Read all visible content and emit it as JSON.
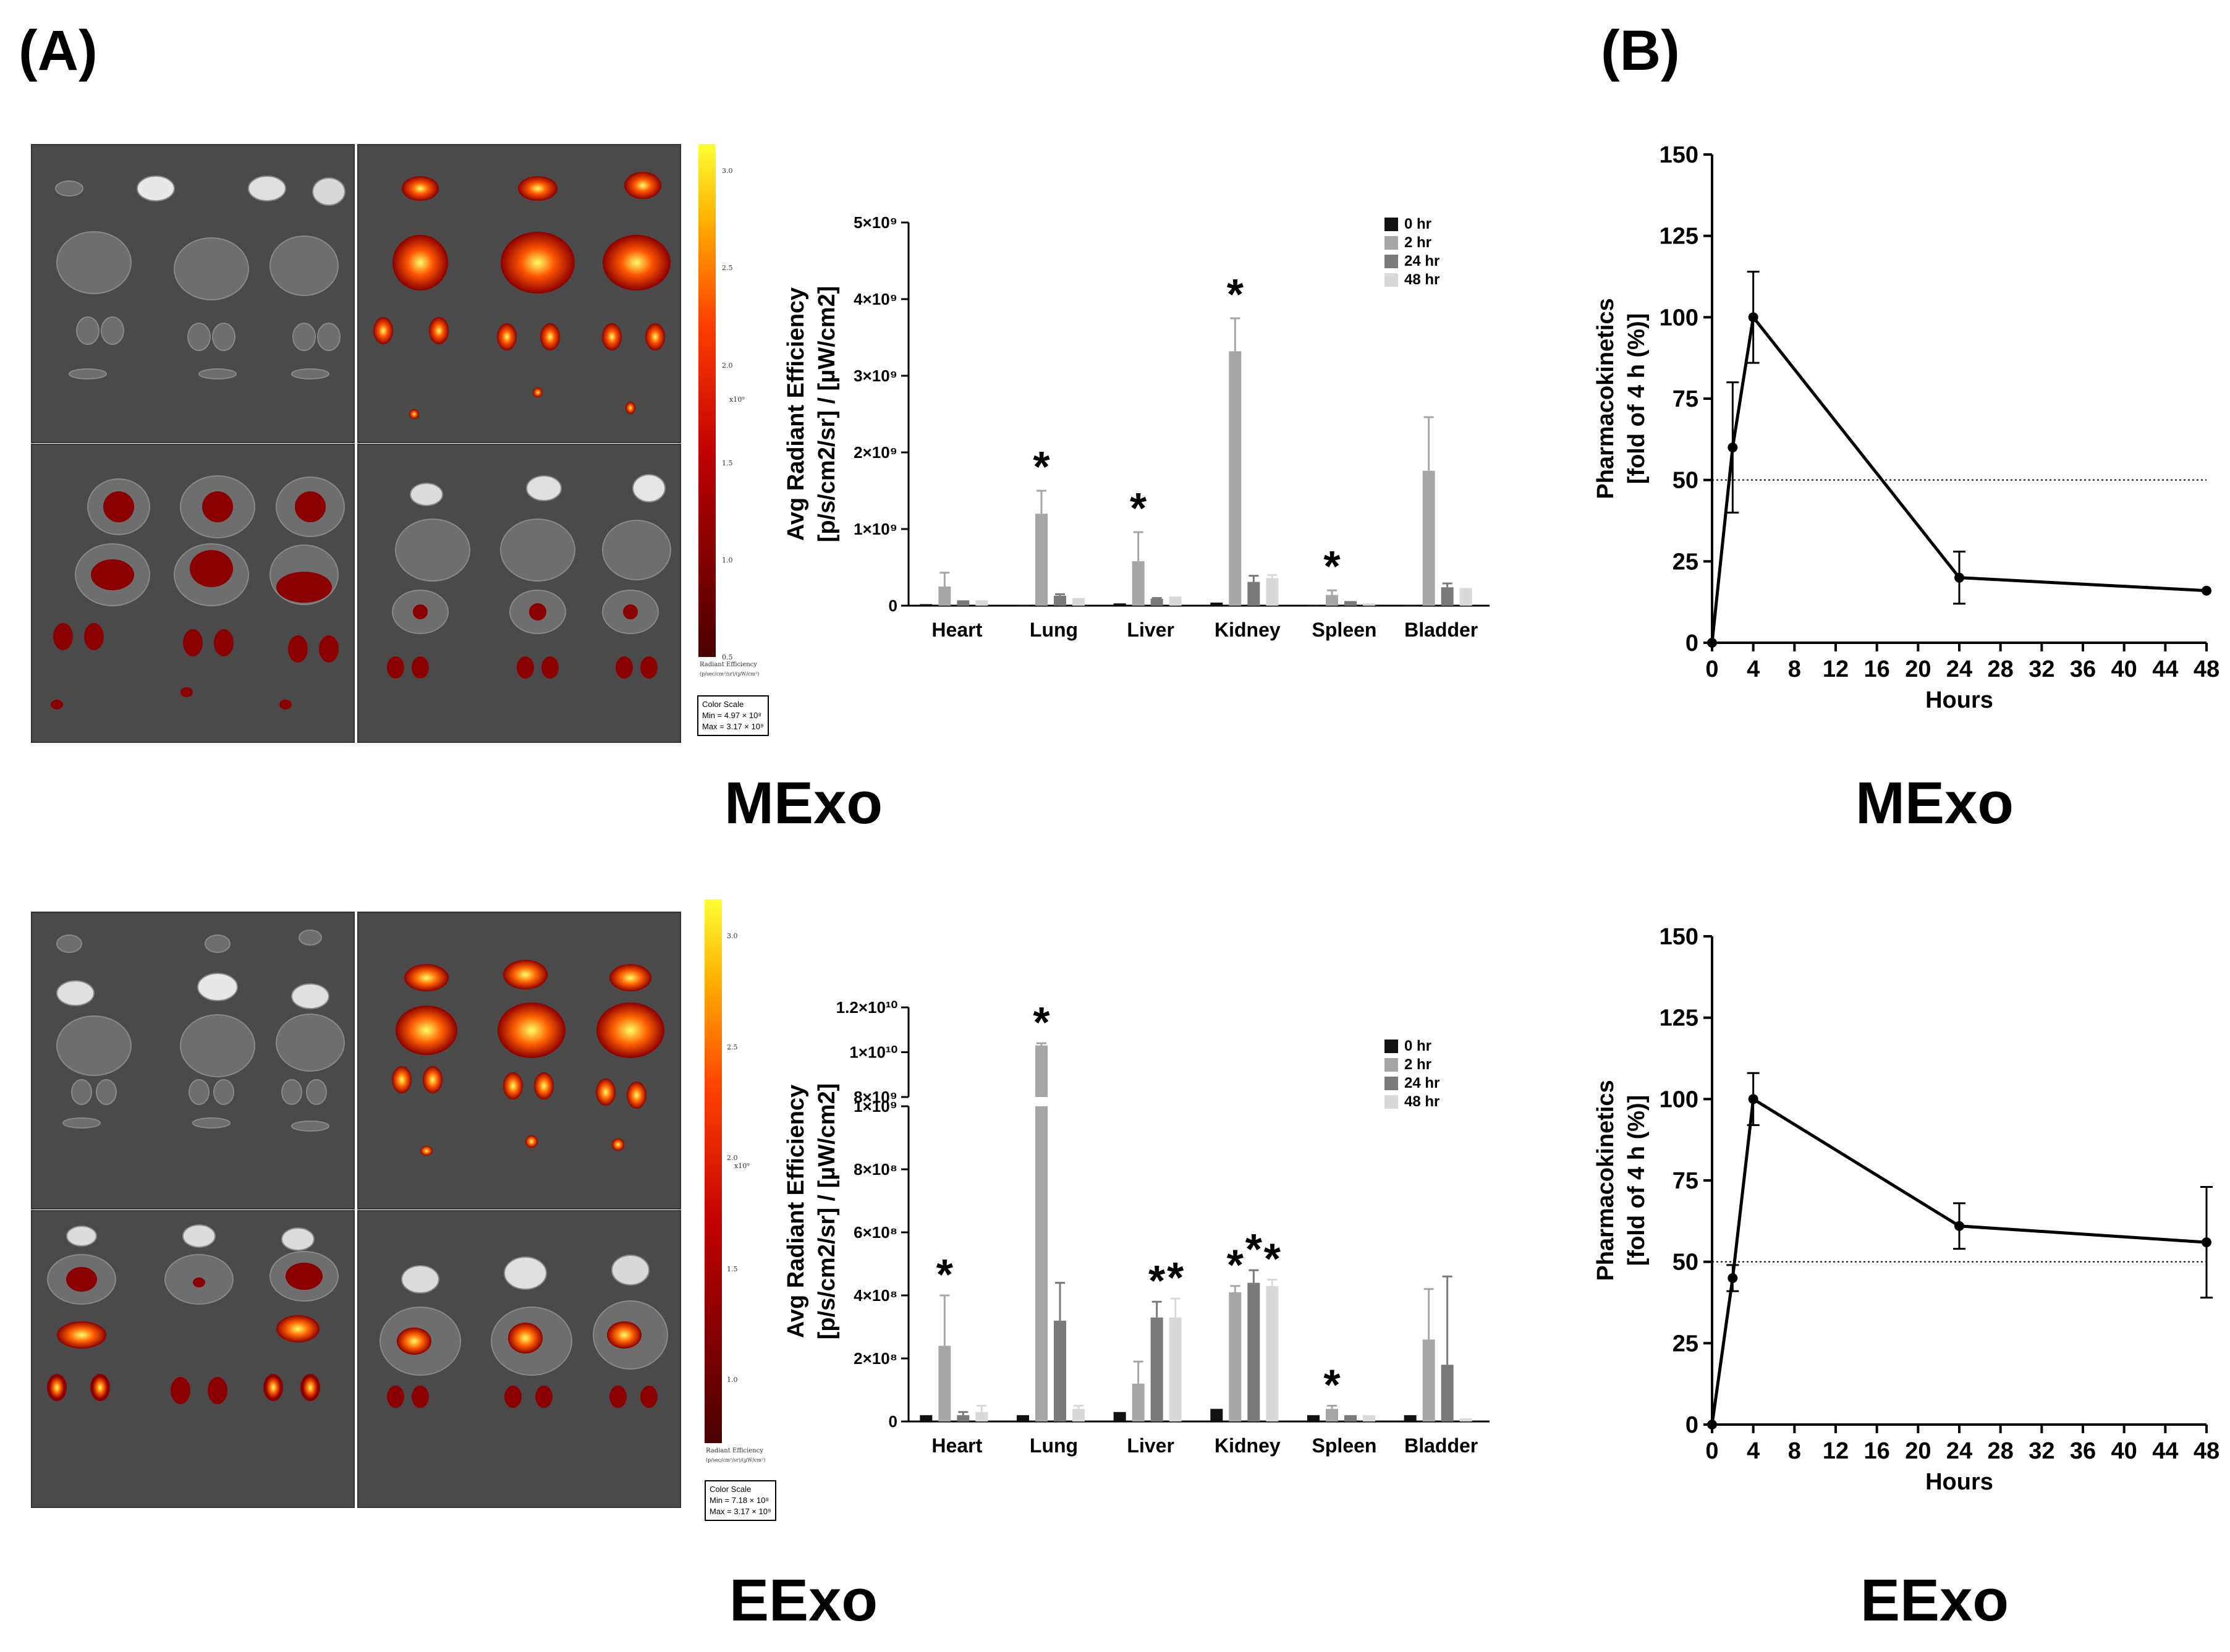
{
  "panel_labels": {
    "a": "(A)",
    "b": "(B)"
  },
  "groups": {
    "top": "MExo",
    "bottom": "EExo"
  },
  "colorbar": {
    "ticks_top": [
      "3.0",
      "2.5",
      "2.0",
      "1.5",
      "1.0",
      "0.5"
    ],
    "ticks_bottom": [
      "3.0",
      "2.5",
      "2.0",
      "1.5",
      "1.0"
    ],
    "unit": "x10⁹",
    "title": "Radiant Efficiency",
    "title_units": "(p/sec/cm²/sr)/(µW/cm²)"
  },
  "color_scale_box": {
    "top": {
      "label": "Color Scale",
      "min": "Min = 4.97 × 10⁸",
      "max": "Max = 3.17 × 10⁹"
    },
    "bottom": {
      "label": "Color Scale",
      "min": "Min = 7.18 × 10⁸",
      "max": "Max = 3.17 × 10⁹"
    }
  },
  "chart_data": [
    {
      "type": "bar",
      "group": "MExo",
      "ylabel_line1": "Avg Radiant Efficiency",
      "ylabel_line2": "[p/s/cm2/sr] / [µW/cm2]",
      "ylim": [
        0,
        5000000000
      ],
      "yticks": [
        {
          "v": 0,
          "t": "0"
        },
        {
          "v": 1000000000,
          "t": "1×10⁹"
        },
        {
          "v": 2000000000,
          "t": "2×10⁹"
        },
        {
          "v": 3000000000,
          "t": "3×10⁹"
        },
        {
          "v": 4000000000,
          "t": "4×10⁹"
        },
        {
          "v": 5000000000,
          "t": "5×10⁹"
        }
      ],
      "categories": [
        "Heart",
        "Lung",
        "Liver",
        "Kidney",
        "Spleen",
        "Bladder"
      ],
      "series": [
        {
          "name": "0 hr",
          "color": "#111111",
          "values": [
            20000000,
            10000000,
            30000000,
            40000000,
            10000000,
            10000000
          ],
          "errors": [
            0,
            0,
            0,
            0,
            0,
            0
          ]
        },
        {
          "name": "2 hr",
          "color": "#a6a6a6",
          "values": [
            250000000,
            1200000000,
            580000000,
            3320000000,
            140000000,
            1760000000
          ],
          "errors": [
            180000000,
            300000000,
            380000000,
            430000000,
            60000000,
            700000000
          ]
        },
        {
          "name": "24 hr",
          "color": "#7a7a7a",
          "values": [
            70000000,
            130000000,
            90000000,
            310000000,
            60000000,
            240000000
          ],
          "errors": [
            0,
            20000000,
            10000000,
            80000000,
            0,
            50000000
          ]
        },
        {
          "name": "48 hr",
          "color": "#d9d9d9",
          "values": [
            70000000,
            100000000,
            120000000,
            360000000,
            30000000,
            230000000
          ],
          "errors": [
            0,
            0,
            0,
            40000000,
            0,
            0
          ]
        }
      ],
      "significant": [
        null,
        1,
        1,
        1,
        1,
        null
      ]
    },
    {
      "type": "bar",
      "group": "EExo",
      "ylabel_line1": "Avg Radiant Efficiency",
      "ylabel_line2": "[p/s/cm2/sr] / [µW/cm2]",
      "axis_break": true,
      "ylim_lower": [
        0,
        1000000000
      ],
      "ylim_upper": [
        8000000000,
        12000000000
      ],
      "yticks": [
        {
          "v": 0,
          "t": "0"
        },
        {
          "v": 200000000,
          "t": "2×10⁸"
        },
        {
          "v": 400000000,
          "t": "4×10⁸"
        },
        {
          "v": 600000000,
          "t": "6×10⁸"
        },
        {
          "v": 800000000,
          "t": "8×10⁸"
        },
        {
          "v": 1000000000,
          "t": "1×10⁹"
        },
        {
          "v": 8000000000,
          "t": "8×10⁹"
        },
        {
          "v": 10000000000,
          "t": "1×10¹⁰"
        },
        {
          "v": 12000000000,
          "t": "1.2×10¹⁰"
        }
      ],
      "categories": [
        "Heart",
        "Lung",
        "Liver",
        "Kidney",
        "Spleen",
        "Bladder"
      ],
      "series": [
        {
          "name": "0 hr",
          "color": "#111111",
          "values": [
            20000000,
            20000000,
            30000000,
            40000000,
            20000000,
            20000000
          ],
          "errors": [
            0,
            0,
            0,
            0,
            0,
            0
          ]
        },
        {
          "name": "2 hr",
          "color": "#a6a6a6",
          "values": [
            240000000,
            10300000000,
            120000000,
            410000000,
            40000000,
            260000000
          ],
          "errors": [
            160000000,
            100000000,
            70000000,
            20000000,
            10000000,
            160000000
          ]
        },
        {
          "name": "24 hr",
          "color": "#7a7a7a",
          "values": [
            20000000,
            320000000,
            330000000,
            440000000,
            20000000,
            180000000
          ],
          "errors": [
            10000000,
            120000000,
            50000000,
            40000000,
            0,
            280000000
          ]
        },
        {
          "name": "48 hr",
          "color": "#d9d9d9",
          "values": [
            30000000,
            40000000,
            330000000,
            430000000,
            20000000,
            10000000
          ],
          "errors": [
            20000000,
            10000000,
            60000000,
            20000000,
            0,
            0
          ]
        }
      ],
      "significant_marks": [
        [
          "Heart",
          1
        ],
        [
          "Lung",
          1
        ],
        [
          "Liver",
          2
        ],
        [
          "Liver",
          3
        ],
        [
          "Kidney",
          1
        ],
        [
          "Kidney",
          2
        ],
        [
          "Kidney",
          3
        ],
        [
          "Spleen",
          1
        ]
      ]
    },
    {
      "type": "line",
      "group": "MExo",
      "xlabel": "Hours",
      "ylabel_line1": "Pharmacokinetics",
      "ylabel_line2": "[fold of 4 h (%)]",
      "xlim": [
        0,
        48
      ],
      "ylim": [
        0,
        150
      ],
      "xticks": [
        0,
        4,
        8,
        12,
        16,
        20,
        24,
        28,
        32,
        36,
        40,
        44,
        48
      ],
      "yticks": [
        0,
        25,
        50,
        75,
        100,
        125,
        150
      ],
      "reference_line": 50,
      "x": [
        0,
        2,
        4,
        24,
        48
      ],
      "y": [
        0,
        60,
        100,
        20,
        16
      ],
      "errors": [
        0,
        20,
        14,
        8,
        0
      ]
    },
    {
      "type": "line",
      "group": "EExo",
      "xlabel": "Hours",
      "ylabel_line1": "Pharmacokinetics",
      "ylabel_line2": "[fold of 4 h (%)]",
      "xlim": [
        0,
        48
      ],
      "ylim": [
        0,
        150
      ],
      "xticks": [
        0,
        4,
        8,
        12,
        16,
        20,
        24,
        28,
        32,
        36,
        40,
        44,
        48
      ],
      "yticks": [
        0,
        25,
        50,
        75,
        100,
        125,
        150
      ],
      "reference_line": 50,
      "x": [
        0,
        2,
        4,
        24,
        48
      ],
      "y": [
        0,
        45,
        100,
        61,
        56
      ],
      "errors": [
        0,
        4,
        8,
        7,
        17
      ]
    }
  ]
}
